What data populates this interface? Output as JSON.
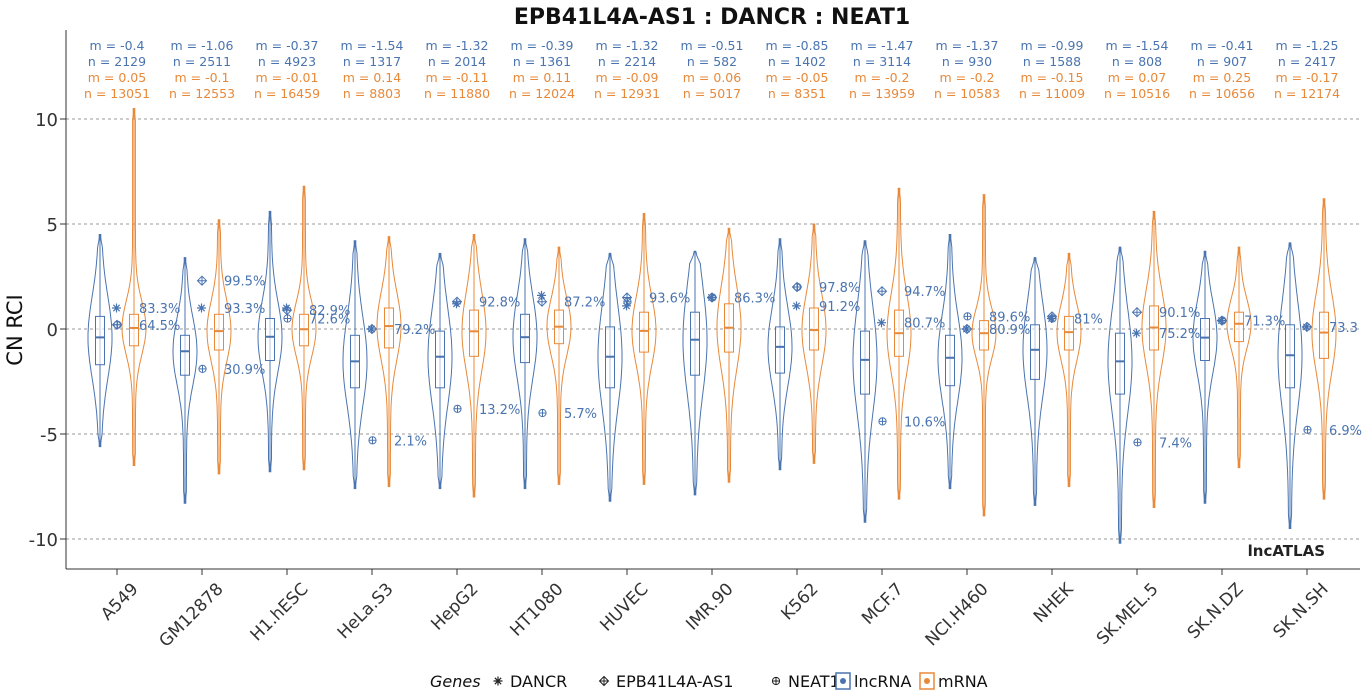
{
  "chart_data": {
    "type": "violin",
    "title": "EPB41L4A-AS1 : DANCR : NEAT1",
    "ylabel": "CN RCI",
    "ylim": [
      -11,
      11
    ],
    "yticks": [
      -10,
      -5,
      0,
      5,
      10
    ],
    "grid": "horizontal dashed",
    "watermark": "lncATLAS",
    "colors": {
      "lncRNA": "#4a74b0",
      "mRNA": "#e8893a"
    },
    "cell_lines": [
      {
        "name": "A549",
        "lnc": {
          "m": "-0.4",
          "n": "2129",
          "q1": -1.7,
          "med": -0.4,
          "q3": 0.6,
          "wlo": -5.6,
          "whi": 4.5
        },
        "mrna": {
          "m": "0.05",
          "n": "13051",
          "q1": -0.8,
          "med": 0.05,
          "q3": 0.7,
          "wlo": -6.5,
          "whi": 10.5
        },
        "genes": {
          "DANCR": 1.0,
          "EPB41L4A-AS1": 0.2,
          "NEAT1": 0.2
        },
        "labels": [
          {
            "text": "83.3%",
            "y": 1.0
          },
          {
            "text": "64.5%",
            "y": 0.2
          }
        ]
      },
      {
        "name": "GM12878",
        "lnc": {
          "m": "-1.06",
          "n": "2511",
          "q1": -2.2,
          "med": -1.06,
          "q3": -0.3,
          "wlo": -8.3,
          "whi": 3.4
        },
        "mrna": {
          "m": "-0.1",
          "n": "12553",
          "q1": -1.0,
          "med": -0.1,
          "q3": 0.7,
          "wlo": -6.9,
          "whi": 5.2
        },
        "genes": {
          "DANCR": 1.0,
          "EPB41L4A-AS1": 2.3,
          "NEAT1": -1.9
        },
        "labels": [
          {
            "text": "99.5%",
            "y": 2.3
          },
          {
            "text": "93.3%",
            "y": 1.0
          },
          {
            "text": "30.9%",
            "y": -1.9
          }
        ]
      },
      {
        "name": "H1.hESC",
        "lnc": {
          "m": "-0.37",
          "n": "4923",
          "q1": -1.5,
          "med": -0.37,
          "q3": 0.5,
          "wlo": -6.8,
          "whi": 5.6
        },
        "mrna": {
          "m": "-0.01",
          "n": "16459",
          "q1": -0.8,
          "med": -0.01,
          "q3": 0.7,
          "wlo": -6.7,
          "whi": 6.8
        },
        "genes": {
          "DANCR": 1.0,
          "EPB41L4A-AS1": 0.9,
          "NEAT1": 0.5
        },
        "labels": [
          {
            "text": "82.9%",
            "y": 0.9
          },
          {
            "text": "72.6%",
            "y": 0.5
          }
        ]
      },
      {
        "name": "HeLa.S3",
        "lnc": {
          "m": "-1.54",
          "n": "1317",
          "q1": -2.8,
          "med": -1.54,
          "q3": -0.3,
          "wlo": -7.6,
          "whi": 4.2
        },
        "mrna": {
          "m": "0.14",
          "n": "8803",
          "q1": -0.9,
          "med": 0.14,
          "q3": 1.0,
          "wlo": -7.5,
          "whi": 4.4
        },
        "genes": {
          "DANCR": 0.0,
          "EPB41L4A-AS1": 0.0,
          "NEAT1": -5.3
        },
        "labels": [
          {
            "text": "79.2%",
            "y": 0.0
          },
          {
            "text": "2.1%",
            "y": -5.3
          }
        ]
      },
      {
        "name": "HepG2",
        "lnc": {
          "m": "-1.32",
          "n": "2014",
          "q1": -2.8,
          "med": -1.32,
          "q3": -0.1,
          "wlo": -7.6,
          "whi": 3.6
        },
        "mrna": {
          "m": "-0.11",
          "n": "11880",
          "q1": -1.3,
          "med": -0.11,
          "q3": 0.9,
          "wlo": -8.0,
          "whi": 4.5
        },
        "genes": {
          "DANCR": 1.2,
          "EPB41L4A-AS1": 1.3,
          "NEAT1": -3.8
        },
        "labels": [
          {
            "text": "92.8%",
            "y": 1.3
          },
          {
            "text": "13.2%",
            "y": -3.8
          }
        ]
      },
      {
        "name": "HT1080",
        "lnc": {
          "m": "-0.39",
          "n": "1361",
          "q1": -1.6,
          "med": -0.39,
          "q3": 0.7,
          "wlo": -7.6,
          "whi": 4.3
        },
        "mrna": {
          "m": "0.11",
          "n": "12024",
          "q1": -0.7,
          "med": 0.11,
          "q3": 0.9,
          "wlo": -7.4,
          "whi": 3.9
        },
        "genes": {
          "DANCR": 1.6,
          "EPB41L4A-AS1": 1.3,
          "NEAT1": -4.0
        },
        "labels": [
          {
            "text": "87.2%",
            "y": 1.3
          },
          {
            "text": "5.7%",
            "y": -4.0
          }
        ]
      },
      {
        "name": "HUVEC",
        "lnc": {
          "m": "-1.32",
          "n": "2214",
          "q1": -2.8,
          "med": -1.32,
          "q3": 0.1,
          "wlo": -8.2,
          "whi": 3.6
        },
        "mrna": {
          "m": "-0.09",
          "n": "12931",
          "q1": -1.1,
          "med": -0.09,
          "q3": 0.8,
          "wlo": -7.4,
          "whi": 5.5
        },
        "genes": {
          "DANCR": 1.1,
          "EPB41L4A-AS1": 1.5,
          "NEAT1": 1.3
        },
        "labels": [
          {
            "text": "93.6%",
            "y": 1.5
          }
        ]
      },
      {
        "name": "IMR.90",
        "lnc": {
          "m": "-0.51",
          "n": "582",
          "q1": -2.2,
          "med": -0.51,
          "q3": 0.8,
          "wlo": -7.9,
          "whi": 3.7
        },
        "mrna": {
          "m": "0.06",
          "n": "5017",
          "q1": -1.1,
          "med": 0.06,
          "q3": 1.2,
          "wlo": -7.3,
          "whi": 4.8
        },
        "genes": {
          "DANCR": 1.5,
          "EPB41L4A-AS1": 1.5,
          "NEAT1": 1.5
        },
        "labels": [
          {
            "text": "86.3%",
            "y": 1.5
          }
        ]
      },
      {
        "name": "K562",
        "lnc": {
          "m": "-0.85",
          "n": "1402",
          "q1": -2.1,
          "med": -0.85,
          "q3": 0.1,
          "wlo": -6.7,
          "whi": 4.3
        },
        "mrna": {
          "m": "-0.05",
          "n": "8351",
          "q1": -1.0,
          "med": -0.05,
          "q3": 1.0,
          "wlo": -6.4,
          "whi": 5.0
        },
        "genes": {
          "DANCR": 1.1,
          "EPB41L4A-AS1": 2.0,
          "NEAT1": 2.0
        },
        "labels": [
          {
            "text": "97.8%",
            "y": 2.0
          },
          {
            "text": "91.2%",
            "y": 1.1
          }
        ]
      },
      {
        "name": "MCF.7",
        "lnc": {
          "m": "-1.47",
          "n": "3114",
          "q1": -3.1,
          "med": -1.47,
          "q3": -0.1,
          "wlo": -9.2,
          "whi": 4.2
        },
        "mrna": {
          "m": "-0.2",
          "n": "13959",
          "q1": -1.3,
          "med": -0.2,
          "q3": 0.9,
          "wlo": -8.1,
          "whi": 6.7
        },
        "genes": {
          "DANCR": 0.3,
          "EPB41L4A-AS1": 1.8,
          "NEAT1": -4.4
        },
        "labels": [
          {
            "text": "94.7%",
            "y": 1.8
          },
          {
            "text": "80.7%",
            "y": 0.3
          },
          {
            "text": "10.6%",
            "y": -4.4
          }
        ]
      },
      {
        "name": "NCI.H460",
        "lnc": {
          "m": "-1.37",
          "n": "930",
          "q1": -2.7,
          "med": -1.37,
          "q3": -0.3,
          "wlo": -7.6,
          "whi": 4.5
        },
        "mrna": {
          "m": "-0.2",
          "n": "10583",
          "q1": -1.0,
          "med": -0.2,
          "q3": 0.4,
          "wlo": -8.9,
          "whi": 6.4
        },
        "genes": {
          "DANCR": 0.0,
          "EPB41L4A-AS1": 0.0,
          "NEAT1": 0.6
        },
        "labels": [
          {
            "text": "89.6%",
            "y": 0.6
          },
          {
            "text": "80.9%",
            "y": 0.0
          }
        ]
      },
      {
        "name": "NHEK",
        "lnc": {
          "m": "-0.99",
          "n": "1588",
          "q1": -2.4,
          "med": -0.99,
          "q3": 0.2,
          "wlo": -8.4,
          "whi": 3.4
        },
        "mrna": {
          "m": "-0.15",
          "n": "11009",
          "q1": -1.0,
          "med": -0.15,
          "q3": 0.6,
          "wlo": -7.5,
          "whi": 3.6
        },
        "genes": {
          "DANCR": 0.5,
          "EPB41L4A-AS1": 0.6,
          "NEAT1": 0.5
        },
        "labels": [
          {
            "text": "81%",
            "y": 0.5
          }
        ]
      },
      {
        "name": "SK.MEL.5",
        "lnc": {
          "m": "-1.54",
          "n": "808",
          "q1": -3.1,
          "med": -1.54,
          "q3": -0.2,
          "wlo": -10.2,
          "whi": 3.9
        },
        "mrna": {
          "m": "0.07",
          "n": "10516",
          "q1": -1.0,
          "med": 0.07,
          "q3": 1.1,
          "wlo": -8.5,
          "whi": 5.6
        },
        "genes": {
          "DANCR": -0.2,
          "EPB41L4A-AS1": 0.8,
          "NEAT1": -5.4
        },
        "labels": [
          {
            "text": "90.1%",
            "y": 0.8
          },
          {
            "text": "75.2%",
            "y": -0.2
          },
          {
            "text": "7.4%",
            "y": -5.4
          }
        ]
      },
      {
        "name": "SK.N.DZ",
        "lnc": {
          "m": "-0.41",
          "n": "907",
          "q1": -1.5,
          "med": -0.41,
          "q3": 0.5,
          "wlo": -8.3,
          "whi": 3.7
        },
        "mrna": {
          "m": "0.25",
          "n": "10656",
          "q1": -0.6,
          "med": 0.25,
          "q3": 0.8,
          "wlo": -6.6,
          "whi": 3.9
        },
        "genes": {
          "DANCR": 0.4,
          "EPB41L4A-AS1": 0.4,
          "NEAT1": 0.4
        },
        "labels": [
          {
            "text": "71.3%",
            "y": 0.4
          }
        ]
      },
      {
        "name": "SK.N.SH",
        "lnc": {
          "m": "-1.25",
          "n": "2417",
          "q1": -2.8,
          "med": -1.25,
          "q3": 0.2,
          "wlo": -9.5,
          "whi": 4.1
        },
        "mrna": {
          "m": "-0.17",
          "n": "12174",
          "q1": -1.4,
          "med": -0.17,
          "q3": 0.8,
          "wlo": -8.1,
          "whi": 6.2
        },
        "genes": {
          "DANCR": 0.1,
          "EPB41L4A-AS1": 0.1,
          "NEAT1": -4.8
        },
        "labels": [
          {
            "text": "73.3",
            "y": 0.1
          },
          {
            "text": "6.9%",
            "y": -4.8
          }
        ]
      }
    ],
    "legend": {
      "genes_title": "Genes",
      "genes": [
        {
          "name": "DANCR",
          "marker": "asterisk"
        },
        {
          "name": "EPB41L4A-AS1",
          "marker": "diamond-plus"
        },
        {
          "name": "NEAT1",
          "marker": "circle-plus"
        }
      ],
      "classes": [
        {
          "name": "lncRNA",
          "color": "#4a74b0"
        },
        {
          "name": "mRNA",
          "color": "#e8893a"
        }
      ]
    }
  }
}
